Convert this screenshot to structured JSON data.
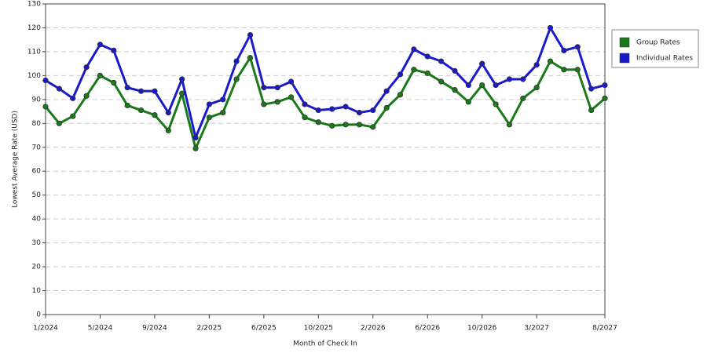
{
  "chart_data": {
    "type": "line",
    "x_label": "Month of Check In",
    "y_label": "Lowest Average Rate (USD)",
    "categories": [
      "1/2024",
      null,
      null,
      null,
      "5/2024",
      null,
      null,
      null,
      "9/2024",
      null,
      null,
      null,
      "2/2025",
      null,
      null,
      null,
      "6/2025",
      null,
      null,
      null,
      "10/2025",
      null,
      null,
      null,
      "2/2026",
      null,
      null,
      null,
      "6/2026",
      null,
      null,
      null,
      "10/2026",
      null,
      null,
      null,
      "3/2027",
      null,
      null,
      null,
      null,
      "8/2027"
    ],
    "series": [
      {
        "name": "Group Rates",
        "color": "#1a7a1a",
        "values": [
          87,
          80,
          83,
          91.5,
          100,
          97,
          87.5,
          85.5,
          83.5,
          77,
          92.5,
          69.5,
          82.5,
          84.5,
          98.5,
          107.5,
          88,
          89,
          91,
          82.5,
          80.5,
          79,
          79.5,
          79.5,
          78.5,
          86.5,
          92,
          102.5,
          101,
          97.5,
          94,
          89,
          96,
          88,
          79.5,
          90.5,
          95,
          106,
          102.5,
          102.5,
          85.5,
          90.5
        ]
      },
      {
        "name": "Individual Rates",
        "color": "#1a1acc",
        "values": [
          98,
          94.5,
          90.5,
          103.5,
          113,
          110.5,
          95,
          93.5,
          93.5,
          84.5,
          98.5,
          74,
          88,
          90,
          106,
          117,
          95,
          95,
          97.5,
          88,
          85.5,
          86,
          87,
          84.5,
          85.5,
          93.5,
          100.5,
          111,
          108,
          106,
          102,
          96,
          105,
          96,
          98.5,
          98.5,
          104.5,
          120,
          110.5,
          112,
          94.5,
          96
        ]
      }
    ],
    "ylim": [
      0,
      130
    ],
    "yticks": [
      0,
      10,
      20,
      30,
      40,
      50,
      60,
      70,
      80,
      90,
      100,
      110,
      120,
      130
    ],
    "grid": true,
    "legend": "right"
  }
}
